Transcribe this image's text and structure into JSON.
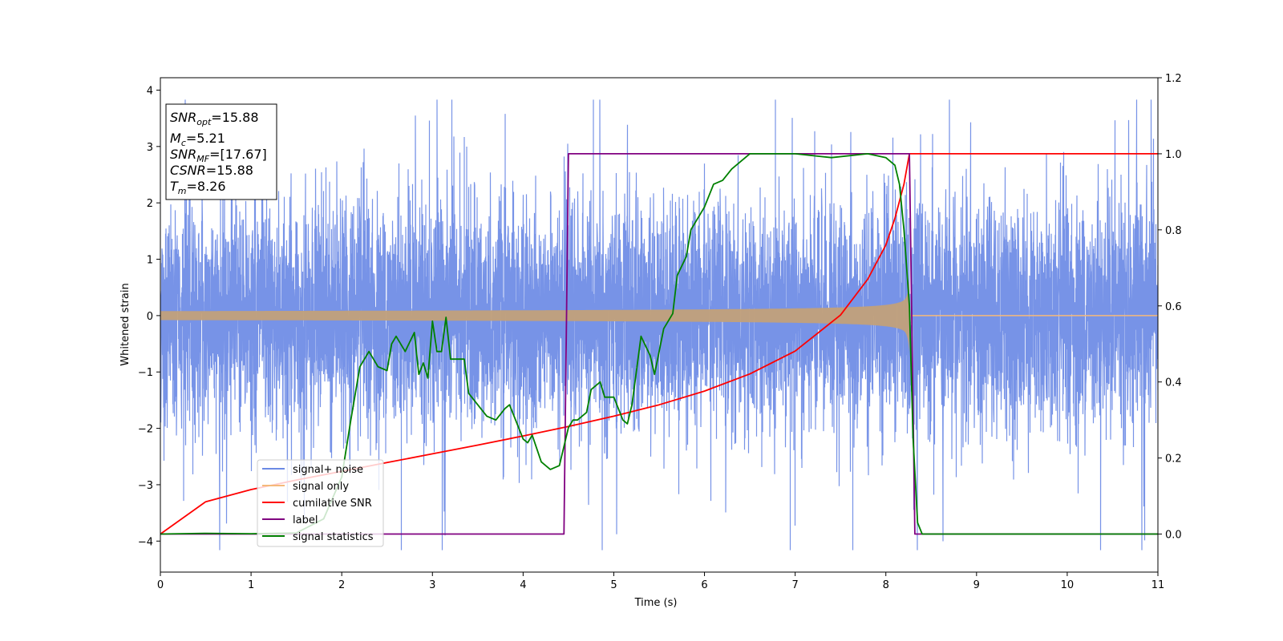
{
  "chart_data": {
    "type": "line",
    "title": "",
    "xlabel": "Time (s)",
    "ylabel": "Whitened strain",
    "xlim": [
      0,
      11
    ],
    "ylim_left": [
      -4.55,
      4.22
    ],
    "ylim_right": [
      -0.1,
      1.2
    ],
    "x_ticks": [
      "0",
      "1",
      "2",
      "3",
      "4",
      "5",
      "6",
      "7",
      "8",
      "9",
      "10",
      "11"
    ],
    "y_ticks_left": [
      "−4",
      "−3",
      "−2",
      "−1",
      "0",
      "1",
      "2",
      "3",
      "4"
    ],
    "y_ticks_left_values": [
      -4,
      -3,
      -2,
      -1,
      0,
      1,
      2,
      3,
      4
    ],
    "y_ticks_right": [
      "0.0",
      "0.2",
      "0.4",
      "0.6",
      "0.8",
      "1.0",
      "1.2"
    ],
    "y_ticks_right_values": [
      0.0,
      0.2,
      0.4,
      0.6,
      0.8,
      1.0,
      1.2
    ],
    "grid": false,
    "legend_position": "lower-left",
    "annotation": {
      "snr_opt": {
        "sym": "SNR",
        "sub": "opt",
        "val": "=15.88"
      },
      "mc": {
        "sym": "M",
        "sub": "c",
        "val": "=5.21"
      },
      "snr_mf": {
        "sym": "SNR",
        "sub": "MF",
        "val": "=[17.67]"
      },
      "csnr": {
        "sym": "CSNR",
        "sub": "",
        "val": "=15.88"
      },
      "tm": {
        "sym": "T",
        "sub": "m",
        "val": "=8.26"
      }
    },
    "series": [
      {
        "name": "signal+ noise",
        "axis": "left",
        "color": "#6b8ae5",
        "description_values": {
          "start": 0,
          "end": 11,
          "amplitude_std": 0.95,
          "max": 3.83,
          "min": -4.16
        }
      },
      {
        "name": "signal only",
        "axis": "left",
        "color": "#f5b97a",
        "chirp": {
          "start": 0,
          "merger": 8.26,
          "start_amplitude": 0.08,
          "merger_amplitude": 1.0
        }
      },
      {
        "name": "cumilative SNR",
        "axis": "right",
        "color": "#ff0000",
        "x": [
          0,
          0.5,
          1,
          1.5,
          2,
          2.5,
          3,
          3.5,
          4,
          4.5,
          5,
          5.5,
          6,
          6.5,
          7,
          7.5,
          7.8,
          8.0,
          8.1,
          8.2,
          8.26,
          11
        ],
        "y": [
          0.0,
          0.085,
          0.117,
          0.142,
          0.165,
          0.188,
          0.211,
          0.234,
          0.258,
          0.283,
          0.31,
          0.34,
          0.376,
          0.421,
          0.481,
          0.576,
          0.67,
          0.76,
          0.83,
          0.92,
          1.0,
          1.0
        ]
      },
      {
        "name": "label",
        "axis": "right",
        "color": "#800080",
        "x": [
          0,
          4.45,
          4.5,
          8.26,
          8.32,
          11
        ],
        "y": [
          0,
          0,
          1,
          1,
          0,
          0
        ]
      },
      {
        "name": "signal statistics",
        "axis": "right",
        "color": "#008000",
        "x": [
          0,
          0.5,
          1.0,
          1.5,
          1.8,
          2.0,
          2.1,
          2.2,
          2.3,
          2.4,
          2.5,
          2.55,
          2.6,
          2.7,
          2.8,
          2.85,
          2.9,
          2.95,
          3.0,
          3.05,
          3.1,
          3.15,
          3.2,
          3.3,
          3.35,
          3.4,
          3.5,
          3.6,
          3.7,
          3.8,
          3.85,
          3.95,
          4.0,
          4.05,
          4.1,
          4.2,
          4.3,
          4.4,
          4.5,
          4.55,
          4.6,
          4.7,
          4.75,
          4.85,
          4.9,
          5.0,
          5.1,
          5.15,
          5.2,
          5.3,
          5.4,
          5.45,
          5.55,
          5.65,
          5.7,
          5.8,
          5.85,
          5.9,
          6.0,
          6.1,
          6.2,
          6.3,
          6.4,
          6.5,
          7.0,
          7.4,
          7.8,
          8.0,
          8.1,
          8.15,
          8.2,
          8.26,
          8.3,
          8.35,
          8.4,
          8.5,
          11
        ],
        "y": [
          0.0,
          0.002,
          0.001,
          0.003,
          0.04,
          0.15,
          0.3,
          0.44,
          0.48,
          0.44,
          0.43,
          0.5,
          0.52,
          0.48,
          0.53,
          0.42,
          0.45,
          0.41,
          0.56,
          0.48,
          0.48,
          0.57,
          0.46,
          0.46,
          0.46,
          0.37,
          0.34,
          0.31,
          0.3,
          0.33,
          0.34,
          0.28,
          0.25,
          0.24,
          0.26,
          0.19,
          0.17,
          0.18,
          0.28,
          0.3,
          0.3,
          0.32,
          0.38,
          0.4,
          0.36,
          0.36,
          0.3,
          0.29,
          0.34,
          0.52,
          0.47,
          0.42,
          0.54,
          0.58,
          0.68,
          0.73,
          0.8,
          0.82,
          0.86,
          0.92,
          0.93,
          0.96,
          0.98,
          1.0,
          1.0,
          0.99,
          1.0,
          0.99,
          0.97,
          0.92,
          0.8,
          0.6,
          0.25,
          0.03,
          0.0,
          0.0,
          0.0
        ]
      }
    ]
  }
}
